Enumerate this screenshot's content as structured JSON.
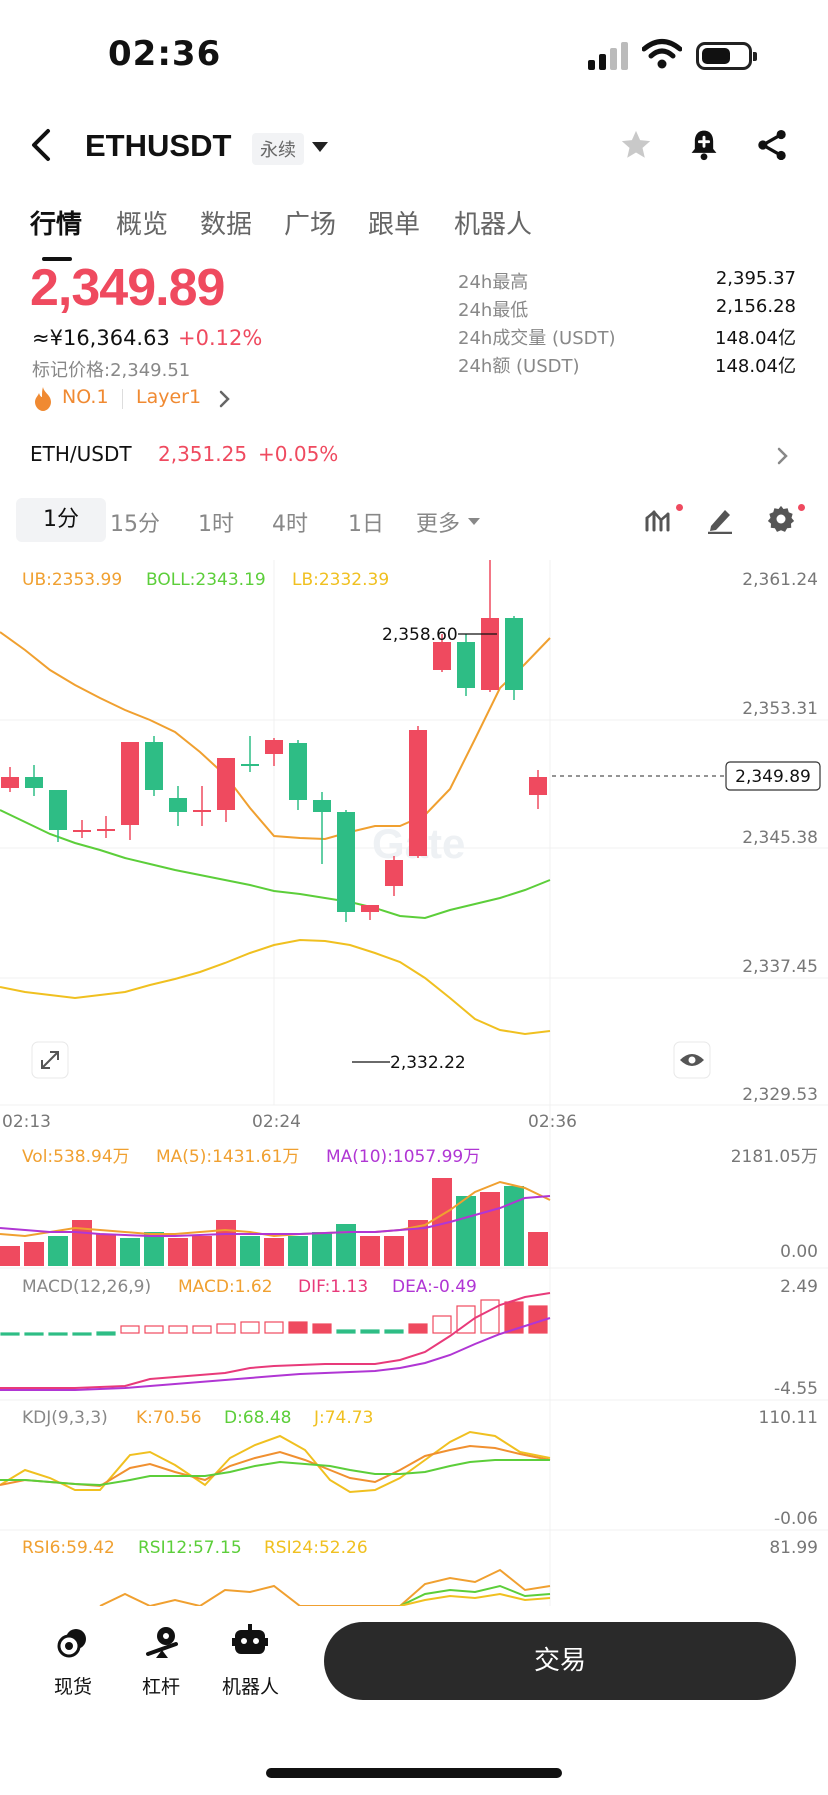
{
  "status": {
    "time": "02:36"
  },
  "header": {
    "pair": "ETHUSDT",
    "contract_type": "永续"
  },
  "tabs": [
    "行情",
    "概览",
    "数据",
    "广场",
    "跟单",
    "机器人"
  ],
  "price": {
    "last": "2,349.89",
    "cny": "≈¥16,364.63",
    "change": "+0.12%",
    "mark_label": "标记价格:",
    "mark_value": "2,349.51",
    "rank": "NO.1",
    "sector": "Layer1"
  },
  "stats": [
    {
      "label": "24h最高",
      "value": "2,395.37"
    },
    {
      "label": "24h最低",
      "value": "2,156.28"
    },
    {
      "label": "24h成交量 (USDT)",
      "value": "148.04亿"
    },
    {
      "label": "24h额 (USDT)",
      "value": "148.04亿"
    }
  ],
  "spot_row": {
    "pair": "ETH/USDT",
    "price": "2,351.25",
    "change": "+0.05%"
  },
  "timeframes": [
    "1分",
    "15分",
    "1时",
    "4时",
    "1日",
    "更多"
  ],
  "colors": {
    "up": "#ef4a5f",
    "down": "#2ebd85",
    "orange": "#f0a030",
    "green": "#5cce3a",
    "purple": "#b036d4"
  },
  "main_chart": {
    "boll": {
      "ub": "UB:2353.99",
      "boll": "BOLL:2343.19",
      "lb": "LB:2332.39"
    },
    "y_ticks": [
      "2,361.24",
      "2,353.31",
      "2,345.38",
      "2,337.45",
      "2,329.53"
    ],
    "x_ticks": [
      "02:13",
      "02:24",
      "02:36"
    ],
    "high_label": "2,358.60",
    "low_label": "2,332.22",
    "current_price": "2,349.89"
  },
  "volume": {
    "vol": "Vol:538.94万",
    "ma5": "MA(5):1431.61万",
    "ma10": "MA(10):1057.99万",
    "max": "2181.05万",
    "min": "0.00"
  },
  "macd": {
    "name": "MACD(12,26,9)",
    "macd": "MACD:1.62",
    "dif": "DIF:1.13",
    "dea": "DEA:-0.49",
    "max": "2.49",
    "min": "-4.55"
  },
  "kdj": {
    "name": "KDJ(9,3,3)",
    "k": "K:70.56",
    "d": "D:68.48",
    "j": "J:74.73",
    "max": "110.11",
    "min": "-0.06"
  },
  "rsi": {
    "r6": "RSI6:59.42",
    "r12": "RSI12:57.15",
    "r24": "RSI24:52.26",
    "max": "81.99"
  },
  "bottom_nav": {
    "spot": "现货",
    "margin": "杠杆",
    "bot": "机器人",
    "trade": "交易"
  }
}
